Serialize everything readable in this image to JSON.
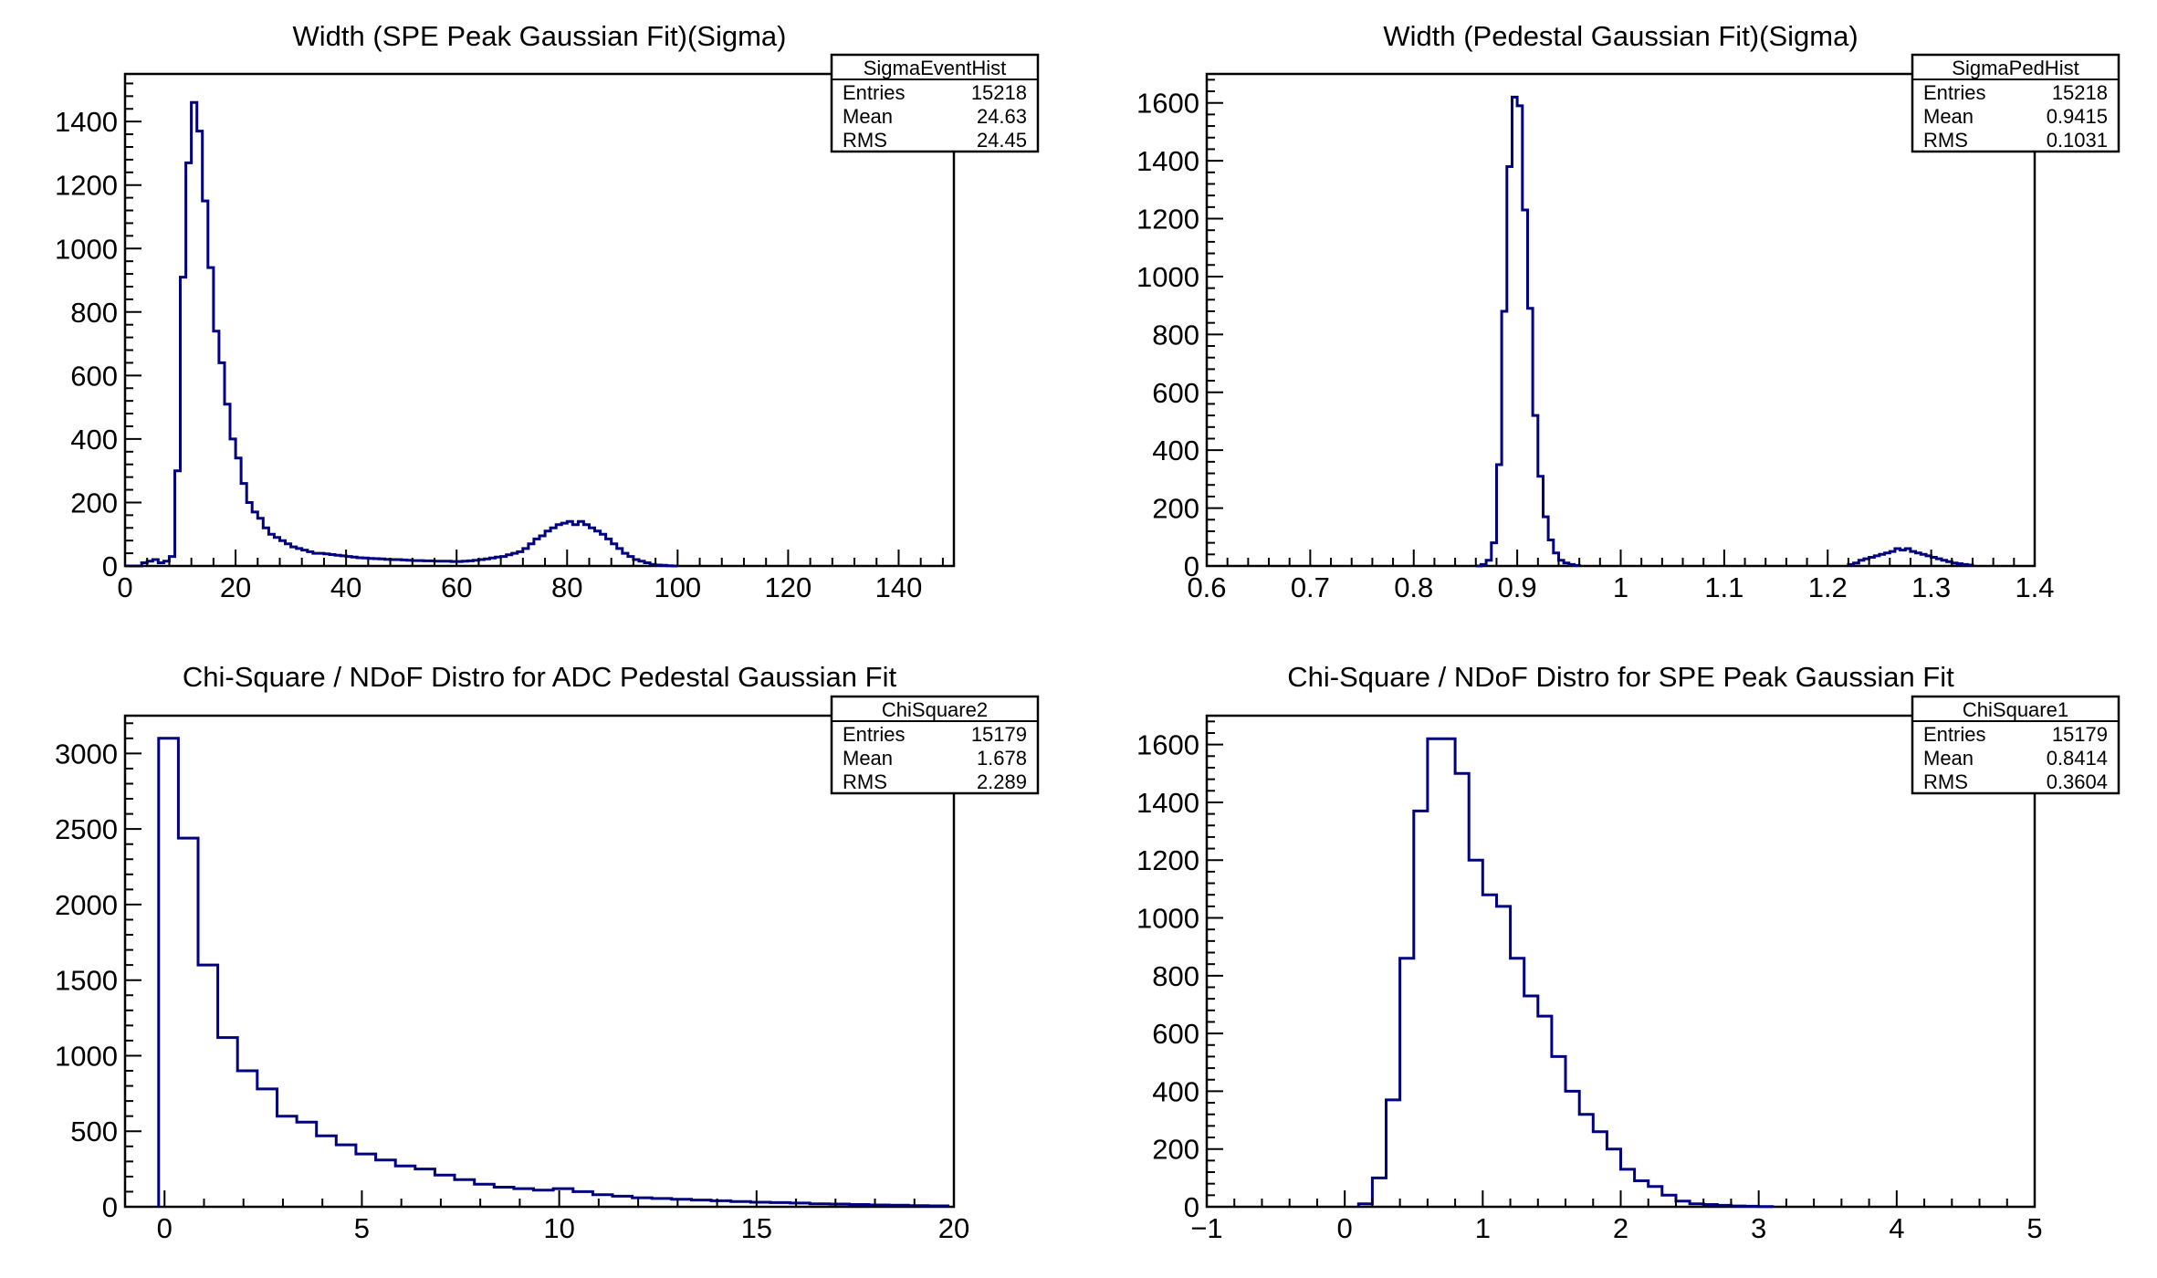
{
  "chart_data": [
    {
      "type": "histogram",
      "title": "Width (SPE Peak Gaussian Fit)(Sigma)",
      "stats": {
        "name": "SigmaEventHist",
        "rows": [
          [
            "Entries",
            "15218"
          ],
          [
            "Mean",
            "24.63"
          ],
          [
            "RMS",
            "24.45"
          ]
        ]
      },
      "xlim": [
        0,
        150
      ],
      "ylim": [
        0,
        1550
      ],
      "xticks": [
        0,
        20,
        40,
        60,
        80,
        100,
        120,
        140
      ],
      "yticks": [
        0,
        200,
        400,
        600,
        800,
        1000,
        1200,
        1400
      ],
      "bin_start": 0,
      "bin_width": 1,
      "values": [
        0,
        0,
        0,
        10,
        15,
        20,
        10,
        15,
        30,
        300,
        910,
        1270,
        1460,
        1370,
        1150,
        940,
        740,
        640,
        510,
        400,
        340,
        260,
        200,
        170,
        150,
        120,
        100,
        90,
        80,
        70,
        60,
        55,
        50,
        45,
        40,
        40,
        38,
        36,
        34,
        32,
        30,
        28,
        26,
        25,
        24,
        23,
        22,
        21,
        20,
        20,
        19,
        18,
        17,
        17,
        16,
        16,
        15,
        15,
        15,
        14,
        14,
        15,
        16,
        18,
        20,
        22,
        25,
        28,
        30,
        35,
        40,
        45,
        55,
        70,
        85,
        95,
        110,
        120,
        130,
        135,
        140,
        130,
        140,
        130,
        120,
        110,
        100,
        85,
        70,
        55,
        40,
        30,
        20,
        15,
        10,
        5,
        3,
        2,
        1,
        0
      ]
    },
    {
      "type": "histogram",
      "title": "Width (Pedestal Gaussian Fit)(Sigma)",
      "stats": {
        "name": "SigmaPedHist",
        "rows": [
          [
            "Entries",
            "15218"
          ],
          [
            "Mean",
            "0.9415"
          ],
          [
            "RMS",
            "0.1031"
          ]
        ]
      },
      "xlim": [
        0.6,
        1.4
      ],
      "ylim": [
        0,
        1700
      ],
      "xticks": [
        0.6,
        0.7,
        0.8,
        0.9,
        1.0,
        1.1,
        1.2,
        1.3,
        1.4
      ],
      "xtick_labels": [
        "0.6",
        "0.7",
        "0.8",
        "0.9",
        "1",
        "1.1",
        "1.2",
        "1.3",
        "1.4"
      ],
      "yticks": [
        0,
        200,
        400,
        600,
        800,
        1000,
        1200,
        1400,
        1600
      ],
      "bin_start": 0.86,
      "bin_width": 0.005,
      "values": [
        0,
        5,
        20,
        80,
        350,
        880,
        1380,
        1620,
        1590,
        1230,
        890,
        520,
        310,
        170,
        90,
        45,
        20,
        10,
        5,
        2
      ],
      "tail_bin_start": 1.22,
      "tail_values": [
        5,
        10,
        20,
        25,
        30,
        35,
        40,
        45,
        50,
        60,
        55,
        60,
        50,
        45,
        40,
        35,
        30,
        25,
        20,
        15,
        10,
        8,
        5,
        3
      ]
    },
    {
      "type": "histogram",
      "title": "Chi-Square / NDoF Distro for ADC Pedestal Gaussian Fit",
      "stats": {
        "name": "ChiSquare2",
        "rows": [
          [
            "Entries",
            "15179"
          ],
          [
            "Mean",
            "1.678"
          ],
          [
            "RMS",
            "2.289"
          ]
        ]
      },
      "xlim": [
        -1,
        20
      ],
      "ylim": [
        0,
        3250
      ],
      "xticks": [
        0,
        5,
        10,
        15,
        20
      ],
      "yticks": [
        0,
        500,
        1000,
        1500,
        2000,
        2500,
        3000
      ],
      "bin_start": -0.15,
      "bin_width": 0.5,
      "values": [
        3100,
        2440,
        1600,
        1120,
        900,
        780,
        600,
        560,
        470,
        410,
        350,
        310,
        270,
        250,
        210,
        180,
        150,
        130,
        120,
        110,
        120,
        100,
        80,
        70,
        60,
        55,
        50,
        45,
        40,
        35,
        30,
        28,
        25,
        20,
        18,
        15,
        12,
        10,
        8,
        6
      ]
    },
    {
      "type": "histogram",
      "title": "Chi-Square / NDoF Distro for SPE Peak Gaussian Fit",
      "stats": {
        "name": "ChiSquare1",
        "rows": [
          [
            "Entries",
            "15179"
          ],
          [
            "Mean",
            "0.8414"
          ],
          [
            "RMS",
            "0.3604"
          ]
        ]
      },
      "xlim": [
        -1,
        5
      ],
      "ylim": [
        0,
        1700
      ],
      "xticks": [
        -1,
        0,
        1,
        2,
        3,
        4,
        5
      ],
      "xtick_labels": [
        "−1",
        "0",
        "1",
        "2",
        "3",
        "4",
        "5"
      ],
      "yticks": [
        0,
        200,
        400,
        600,
        800,
        1000,
        1200,
        1400,
        1600
      ],
      "bin_start": 0.1,
      "bin_width": 0.1,
      "values": [
        10,
        100,
        370,
        860,
        1370,
        1620,
        1620,
        1500,
        1200,
        1080,
        1040,
        860,
        730,
        660,
        520,
        400,
        320,
        260,
        200,
        130,
        90,
        70,
        40,
        20,
        10,
        8,
        5,
        3,
        2,
        1
      ]
    }
  ]
}
